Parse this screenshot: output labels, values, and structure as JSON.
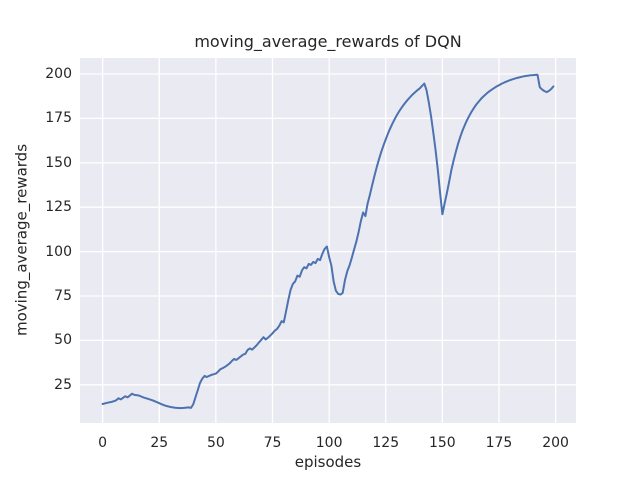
{
  "chart_data": {
    "type": "line",
    "title": "moving_average_rewards of DQN",
    "xlabel": "episodes",
    "ylabel": "moving_average_rewards",
    "xlim": [
      -10,
      209
    ],
    "ylim": [
      3.5,
      209
    ],
    "x_ticks": [
      0,
      25,
      50,
      75,
      100,
      125,
      150,
      175,
      200
    ],
    "y_ticks": [
      25,
      50,
      75,
      100,
      125,
      150,
      175,
      200
    ],
    "grid": true,
    "legend": false,
    "style": "seaborn-darkgrid",
    "colors": {
      "line": "#4C72B0",
      "plot_background": "#EAEAF2",
      "gridline": "#FFFFFF",
      "text": "#262626",
      "figure_background": "#FFFFFF"
    },
    "series": [
      {
        "name": "moving_average_rewards",
        "x": [
          0,
          2,
          4,
          6,
          7,
          8,
          10,
          11,
          13,
          14,
          16,
          18,
          20,
          22,
          24,
          26,
          28,
          30,
          32,
          34,
          36,
          38,
          39,
          40,
          41,
          42,
          43,
          44,
          45,
          46,
          47,
          48,
          49,
          50,
          51,
          52,
          53,
          54,
          55,
          56,
          57,
          58,
          59,
          60,
          61,
          62,
          63,
          64,
          65,
          66,
          67,
          68,
          69,
          70,
          71,
          72,
          73,
          74,
          75,
          76,
          77,
          78,
          79,
          80,
          81,
          82,
          83,
          84,
          85,
          86,
          87,
          88,
          89,
          90,
          91,
          92,
          93,
          94,
          95,
          96,
          97,
          98,
          99,
          100,
          101,
          102,
          103,
          104,
          105,
          106,
          107,
          108,
          109,
          110,
          111,
          112,
          113,
          114,
          115,
          116,
          117,
          118,
          119,
          120,
          121,
          122,
          123,
          124,
          125,
          126,
          127,
          128,
          129,
          130,
          131,
          132,
          133,
          134,
          135,
          136,
          137,
          138,
          139,
          140,
          141,
          142,
          143,
          144,
          145,
          146,
          147,
          148,
          149,
          150,
          151,
          152,
          153,
          154,
          155,
          156,
          157,
          158,
          159,
          160,
          161,
          162,
          163,
          164,
          165,
          166,
          167,
          168,
          169,
          170,
          171,
          172,
          173,
          174,
          175,
          176,
          177,
          178,
          179,
          180,
          181,
          182,
          183,
          184,
          185,
          186,
          187,
          188,
          189,
          190,
          191,
          192,
          193,
          194,
          195,
          196,
          197,
          198,
          199
        ],
        "y": [
          14.2,
          14.9,
          15.4,
          16.3,
          17.4,
          16.8,
          18.6,
          17.9,
          20.0,
          19.3,
          19.0,
          17.9,
          17.1,
          16.3,
          15.2,
          14.1,
          13.1,
          12.5,
          12.1,
          11.9,
          12.0,
          12.3,
          12.0,
          14.0,
          18.0,
          22.0,
          26.0,
          28.5,
          30.0,
          29.4,
          30.0,
          30.6,
          30.9,
          31.3,
          32.5,
          33.8,
          34.4,
          35.1,
          36.0,
          37.0,
          38.3,
          39.6,
          39.0,
          39.9,
          41.0,
          42.0,
          42.4,
          44.6,
          45.5,
          44.8,
          46.0,
          47.3,
          48.8,
          50.3,
          51.8,
          50.5,
          51.5,
          52.7,
          54.0,
          55.5,
          56.4,
          58.3,
          60.8,
          60.2,
          66.5,
          73.0,
          78.5,
          81.8,
          83.3,
          86.5,
          85.8,
          89.5,
          91.2,
          90.6,
          93.1,
          92.5,
          94.2,
          93.5,
          95.9,
          95.2,
          98.7,
          101.5,
          102.9,
          97.0,
          92.0,
          83.0,
          78.0,
          76.2,
          75.8,
          76.8,
          84.0,
          89.0,
          92.2,
          96.5,
          101.0,
          105.5,
          111.0,
          117.0,
          122.0,
          120.0,
          127.0,
          132.0,
          137.5,
          142.5,
          147.5,
          152.0,
          156.0,
          159.8,
          163.3,
          166.5,
          169.5,
          172.2,
          174.7,
          177.0,
          179.1,
          181.0,
          182.8,
          184.4,
          185.9,
          187.3,
          188.6,
          189.8,
          190.9,
          191.9,
          193.3,
          194.6,
          191.0,
          184.0,
          176.0,
          167.0,
          157.0,
          146.0,
          133.0,
          121.0,
          127.0,
          133.0,
          139.5,
          146.0,
          151.5,
          156.5,
          161.0,
          165.0,
          168.5,
          171.5,
          174.3,
          176.8,
          179.0,
          181.0,
          182.8,
          184.4,
          185.9,
          187.2,
          188.4,
          189.5,
          190.5,
          191.4,
          192.2,
          193.0,
          193.7,
          194.4,
          195.0,
          195.6,
          196.1,
          196.6,
          197.0,
          197.4,
          197.8,
          198.1,
          198.4,
          198.7,
          198.9,
          199.1,
          199.3,
          199.4,
          199.5,
          199.6,
          192.5,
          191.3,
          190.4,
          189.8,
          190.4,
          191.5,
          193.0
        ]
      }
    ]
  }
}
